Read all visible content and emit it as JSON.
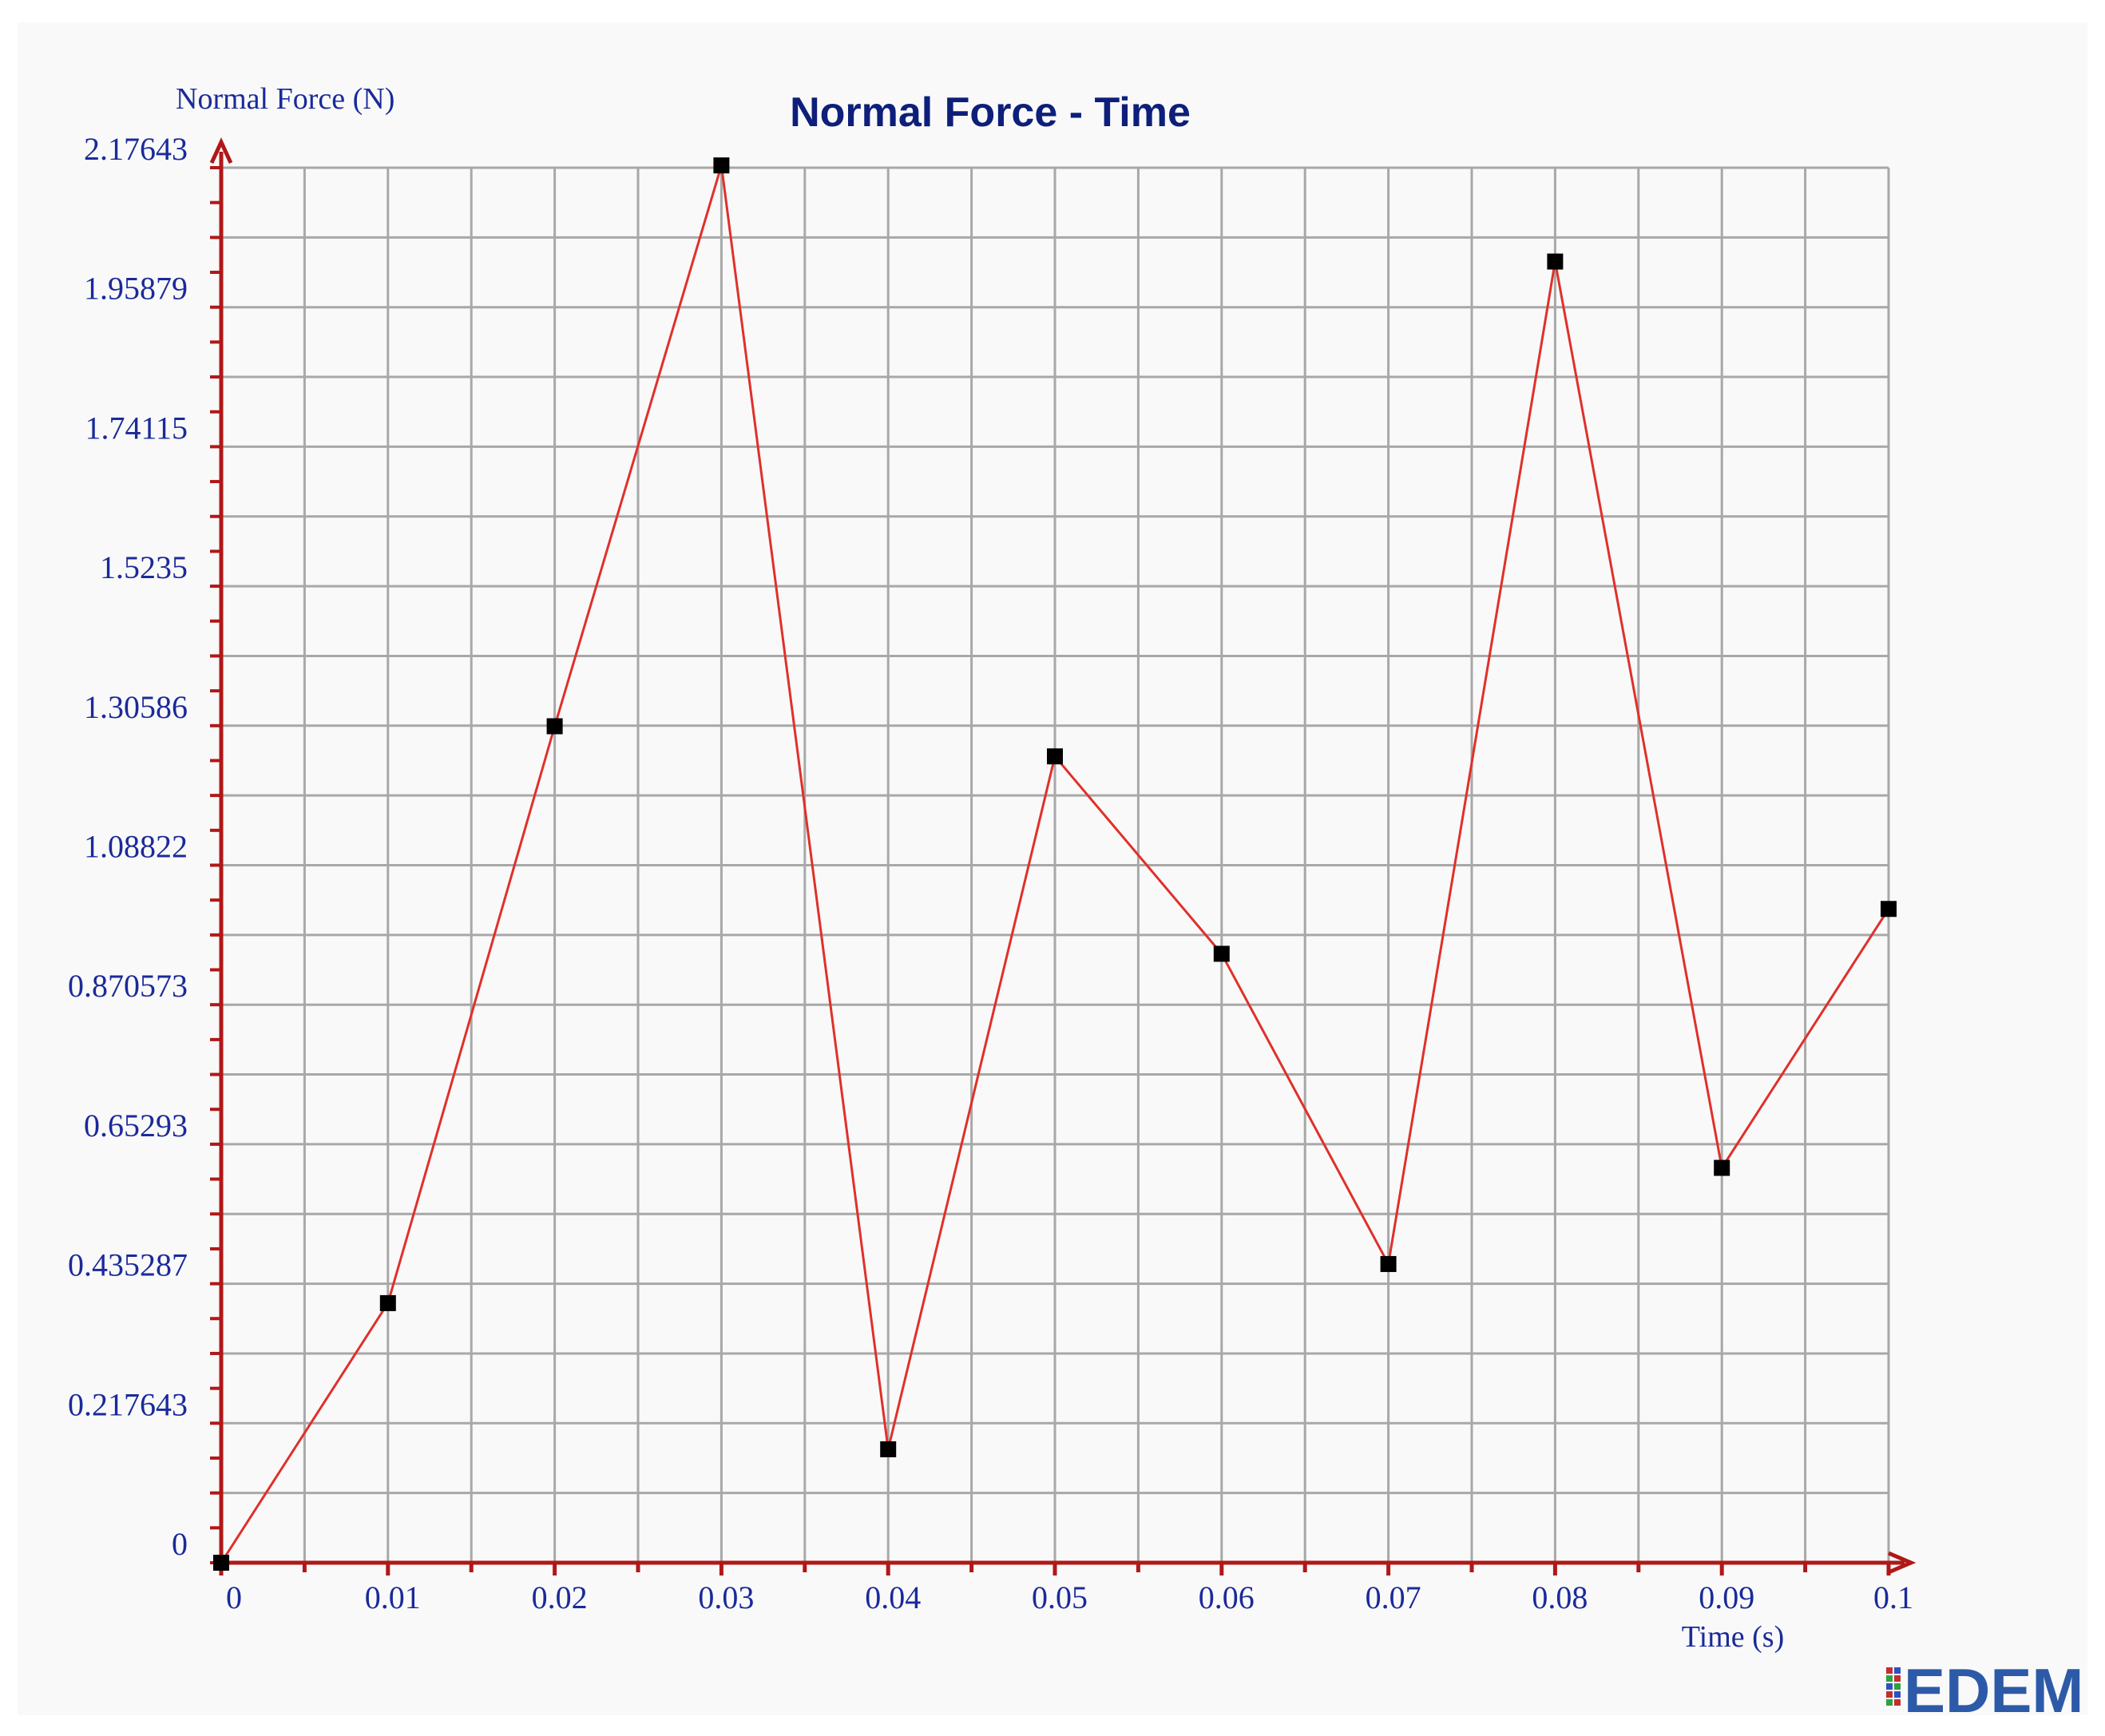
{
  "chart_data": {
    "type": "line",
    "title": "Normal Force - Time",
    "ylabel": "Normal Force (N)",
    "xlabel": "Time (s)",
    "xlim": [
      0,
      0.1
    ],
    "ylim": [
      0,
      2.17643
    ],
    "grid": true,
    "x_ticks": [
      "0",
      "0.01",
      "0.02",
      "0.03",
      "0.04",
      "0.05",
      "0.06",
      "0.07",
      "0.08",
      "0.09",
      "0.1"
    ],
    "y_ticks": [
      "0",
      "0.217643",
      "0.435287",
      "0.65293",
      "0.870573",
      "1.08822",
      "1.30586",
      "1.5235",
      "1.74115",
      "1.95879",
      "2.17643"
    ],
    "series": [
      {
        "x": [
          0,
          0.01,
          0.02,
          0.03,
          0.04,
          0.05,
          0.06,
          0.07,
          0.08,
          0.09,
          0.1
        ],
        "y": [
          0,
          0.405,
          1.305,
          2.18,
          0.177,
          1.258,
          0.95,
          0.466,
          2.03,
          0.616,
          1.02
        ]
      }
    ],
    "colors": {
      "line": "#e0302a",
      "marker": "#000000",
      "axis": "#b01818",
      "grid": "#a8a8a8",
      "text": "#1a2a9a",
      "title": "#0d1f7a"
    }
  },
  "branding": {
    "logo_text": "EDEM"
  }
}
